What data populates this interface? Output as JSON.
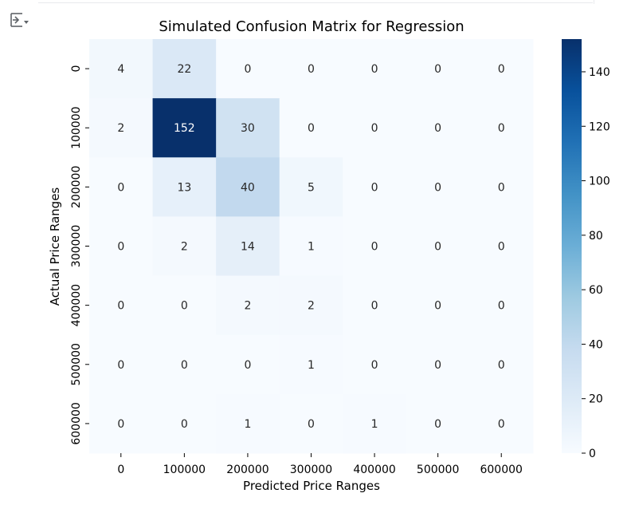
{
  "toolbar": {
    "output_icon": "output-collapse-icon"
  },
  "chart_data": {
    "type": "heatmap",
    "title": "Simulated Confusion Matrix for Regression",
    "xlabel": "Predicted Price Ranges",
    "ylabel": "Actual Price Ranges",
    "x_categories": [
      "0",
      "100000",
      "200000",
      "300000",
      "400000",
      "500000",
      "600000"
    ],
    "y_categories": [
      "0",
      "100000",
      "200000",
      "300000",
      "400000",
      "500000",
      "600000"
    ],
    "values": [
      [
        4,
        22,
        0,
        0,
        0,
        0,
        0
      ],
      [
        2,
        152,
        30,
        0,
        0,
        0,
        0
      ],
      [
        0,
        13,
        40,
        5,
        0,
        0,
        0
      ],
      [
        0,
        2,
        14,
        1,
        0,
        0,
        0
      ],
      [
        0,
        0,
        2,
        2,
        0,
        0,
        0
      ],
      [
        0,
        0,
        0,
        1,
        0,
        0,
        0
      ],
      [
        0,
        0,
        1,
        0,
        1,
        0,
        0
      ]
    ],
    "colormap": "Blues",
    "color_range": [
      0,
      152
    ],
    "colorbar_ticks": [
      0,
      20,
      40,
      60,
      80,
      100,
      120,
      140
    ],
    "grid": false,
    "colorbar_placement": "right"
  }
}
